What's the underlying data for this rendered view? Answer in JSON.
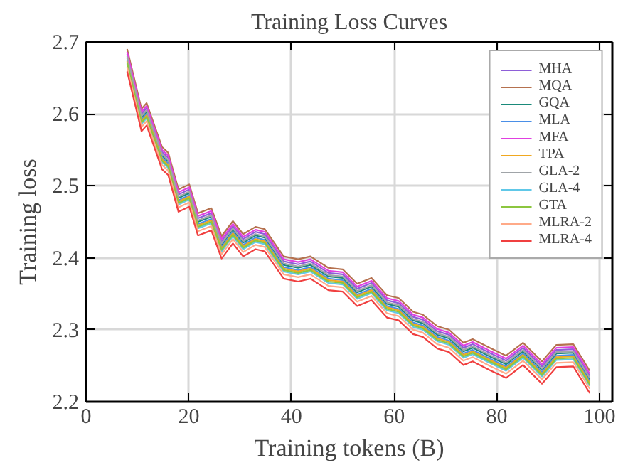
{
  "chart_data": {
    "type": "line",
    "title": "Training Loss Curves",
    "xlabel": "Training tokens (B)",
    "ylabel": "Training loss",
    "xlim": [
      0,
      102.5
    ],
    "xticks": [
      0,
      20,
      40,
      60,
      80,
      100
    ],
    "ylim": [
      2.2,
      2.7
    ],
    "yticks": [
      2.2,
      2.3,
      2.4,
      2.5,
      2.6,
      2.7
    ],
    "grid": true,
    "legend": "top right",
    "line_style": "solid",
    "marker": "none",
    "x": [
      8,
      10.8,
      11.8,
      14.8,
      16,
      18,
      20.1,
      21.8,
      24.4,
      26.4,
      28.6,
      30.6,
      33,
      34.8,
      38.5,
      41.3,
      43.7,
      47.2,
      50,
      52.8,
      55.6,
      58.6,
      60.9,
      63.7,
      65.6,
      68.4,
      70.7,
      73.5,
      75.3,
      78.6,
      81.8,
      85.1,
      88.8,
      91.6,
      94.9,
      98.1
    ],
    "series": [
      {
        "name": "MHA",
        "color": "#8e5fd8",
        "values": [
          2.683,
          2.6,
          2.608,
          2.547,
          2.539,
          2.488,
          2.495,
          2.455,
          2.462,
          2.423,
          2.444,
          2.426,
          2.436,
          2.433,
          2.395,
          2.391,
          2.395,
          2.379,
          2.377,
          2.357,
          2.365,
          2.341,
          2.337,
          2.318,
          2.314,
          2.298,
          2.293,
          2.275,
          2.28,
          2.268,
          2.257,
          2.275,
          2.249,
          2.272,
          2.273,
          2.236
        ]
      },
      {
        "name": "MQA",
        "color": "#b5714f",
        "values": [
          2.69,
          2.607,
          2.615,
          2.554,
          2.546,
          2.495,
          2.502,
          2.462,
          2.469,
          2.43,
          2.451,
          2.433,
          2.443,
          2.44,
          2.402,
          2.398,
          2.402,
          2.386,
          2.384,
          2.364,
          2.372,
          2.348,
          2.344,
          2.325,
          2.321,
          2.305,
          2.3,
          2.282,
          2.287,
          2.275,
          2.264,
          2.282,
          2.256,
          2.279,
          2.28,
          2.243
        ]
      },
      {
        "name": "GQA",
        "color": "#1a8a7a",
        "values": [
          2.678,
          2.595,
          2.603,
          2.542,
          2.534,
          2.483,
          2.49,
          2.45,
          2.457,
          2.418,
          2.439,
          2.421,
          2.431,
          2.428,
          2.39,
          2.386,
          2.39,
          2.374,
          2.372,
          2.352,
          2.36,
          2.336,
          2.332,
          2.313,
          2.309,
          2.293,
          2.288,
          2.27,
          2.275,
          2.263,
          2.252,
          2.27,
          2.244,
          2.267,
          2.268,
          2.231
        ]
      },
      {
        "name": "MLA",
        "color": "#4a8fe7",
        "values": [
          2.675,
          2.592,
          2.6,
          2.539,
          2.531,
          2.48,
          2.487,
          2.447,
          2.454,
          2.415,
          2.436,
          2.418,
          2.428,
          2.425,
          2.387,
          2.383,
          2.387,
          2.371,
          2.369,
          2.349,
          2.357,
          2.333,
          2.329,
          2.31,
          2.306,
          2.29,
          2.285,
          2.267,
          2.272,
          2.26,
          2.249,
          2.267,
          2.241,
          2.264,
          2.265,
          2.228
        ]
      },
      {
        "name": "MFA",
        "color": "#e040e0",
        "values": [
          2.686,
          2.603,
          2.611,
          2.55,
          2.542,
          2.491,
          2.498,
          2.458,
          2.465,
          2.426,
          2.447,
          2.429,
          2.439,
          2.436,
          2.398,
          2.394,
          2.398,
          2.382,
          2.38,
          2.36,
          2.368,
          2.344,
          2.34,
          2.321,
          2.317,
          2.301,
          2.296,
          2.278,
          2.283,
          2.271,
          2.26,
          2.278,
          2.252,
          2.275,
          2.276,
          2.239
        ]
      },
      {
        "name": "TPA",
        "color": "#f0a820",
        "values": [
          2.673,
          2.59,
          2.598,
          2.537,
          2.529,
          2.478,
          2.485,
          2.445,
          2.452,
          2.413,
          2.434,
          2.416,
          2.426,
          2.423,
          2.385,
          2.381,
          2.385,
          2.369,
          2.367,
          2.347,
          2.355,
          2.331,
          2.327,
          2.308,
          2.304,
          2.288,
          2.283,
          2.265,
          2.27,
          2.258,
          2.247,
          2.265,
          2.239,
          2.262,
          2.263,
          2.226
        ]
      },
      {
        "name": "GLA-2",
        "color": "#a0a4a8",
        "values": [
          2.68,
          2.597,
          2.605,
          2.544,
          2.536,
          2.485,
          2.492,
          2.452,
          2.459,
          2.42,
          2.441,
          2.423,
          2.433,
          2.43,
          2.392,
          2.388,
          2.392,
          2.376,
          2.374,
          2.354,
          2.362,
          2.338,
          2.334,
          2.315,
          2.311,
          2.295,
          2.29,
          2.272,
          2.277,
          2.265,
          2.254,
          2.272,
          2.246,
          2.269,
          2.27,
          2.233
        ]
      },
      {
        "name": "GLA-4",
        "color": "#60c8e8",
        "values": [
          2.669,
          2.586,
          2.594,
          2.533,
          2.525,
          2.474,
          2.481,
          2.441,
          2.448,
          2.409,
          2.43,
          2.412,
          2.422,
          2.419,
          2.381,
          2.377,
          2.381,
          2.365,
          2.363,
          2.343,
          2.351,
          2.327,
          2.323,
          2.304,
          2.3,
          2.284,
          2.279,
          2.261,
          2.266,
          2.254,
          2.243,
          2.261,
          2.235,
          2.258,
          2.259,
          2.222
        ]
      },
      {
        "name": "GTA",
        "color": "#8cc63f",
        "values": [
          2.671,
          2.588,
          2.596,
          2.535,
          2.527,
          2.476,
          2.483,
          2.443,
          2.45,
          2.411,
          2.432,
          2.414,
          2.424,
          2.421,
          2.383,
          2.379,
          2.383,
          2.367,
          2.365,
          2.345,
          2.353,
          2.329,
          2.325,
          2.306,
          2.302,
          2.286,
          2.281,
          2.263,
          2.268,
          2.256,
          2.245,
          2.263,
          2.237,
          2.26,
          2.261,
          2.224
        ]
      },
      {
        "name": "MLRA-2",
        "color": "#ffaa88",
        "values": [
          2.665,
          2.582,
          2.59,
          2.529,
          2.521,
          2.47,
          2.477,
          2.437,
          2.444,
          2.405,
          2.426,
          2.408,
          2.418,
          2.415,
          2.377,
          2.373,
          2.377,
          2.361,
          2.359,
          2.339,
          2.347,
          2.323,
          2.319,
          2.3,
          2.296,
          2.28,
          2.275,
          2.257,
          2.262,
          2.25,
          2.239,
          2.257,
          2.231,
          2.254,
          2.255,
          2.218
        ]
      },
      {
        "name": "MLRA-4",
        "color": "#f04040",
        "values": [
          2.659,
          2.576,
          2.584,
          2.523,
          2.515,
          2.464,
          2.471,
          2.431,
          2.438,
          2.399,
          2.42,
          2.402,
          2.412,
          2.409,
          2.371,
          2.367,
          2.371,
          2.355,
          2.353,
          2.333,
          2.341,
          2.317,
          2.313,
          2.294,
          2.29,
          2.274,
          2.269,
          2.251,
          2.256,
          2.244,
          2.233,
          2.251,
          2.225,
          2.248,
          2.249,
          2.212
        ]
      }
    ]
  }
}
